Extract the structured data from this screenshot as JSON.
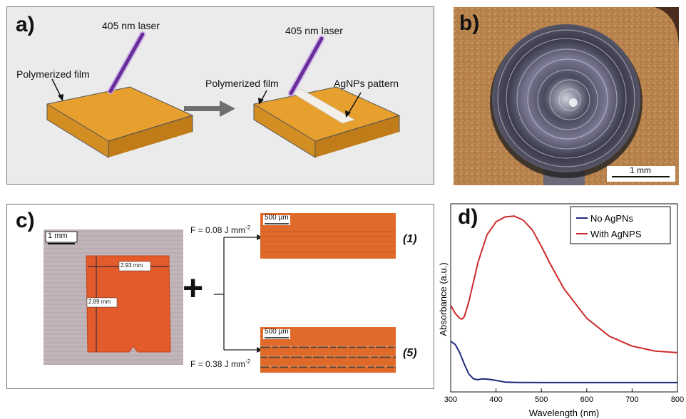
{
  "panel_a": {
    "label": "a)",
    "left_laser_label": "405 nm laser",
    "right_laser_label": "405 nm laser",
    "left_film_label": "Polymerized film",
    "right_film_label": "Polymerized film",
    "pattern_label": "AgNPs pattern",
    "colors": {
      "film_top": "#e7a02e",
      "film_side": "#c9851c",
      "laser": "#6a2e9c",
      "arrow": "#6e6e6e"
    }
  },
  "panel_b": {
    "label": "b)",
    "scale_bar_label": "1 mm"
  },
  "panel_c": {
    "label": "c)",
    "photo_scale_label": "1 mm",
    "width_label": "2.93 mm",
    "height_label": "2.89 mm",
    "plus_symbol": "+",
    "fluence_top_prefix": "F = 0.08 J mm",
    "fluence_top_exp": "-2",
    "fluence_bottom_prefix": "F = 0.38 J mm",
    "fluence_bottom_exp": "-2",
    "micro_top_scale": "500 µm",
    "micro_bottom_scale": "500 µm",
    "tag_top": "(1)",
    "tag_bottom": "(5)"
  },
  "panel_d": {
    "label": "d)",
    "chart_data": {
      "type": "line",
      "xlabel": "Wavelength (nm)",
      "ylabel": "Absorbance (a.u.)",
      "xlim": [
        300,
        800
      ],
      "ylim": [
        0,
        1
      ],
      "x_ticks": [
        "300",
        "400",
        "500",
        "600",
        "700",
        "800"
      ],
      "y_ticks_shown": false,
      "grid": false,
      "legend_position": "top-right",
      "series": [
        {
          "name": "No AgPNs",
          "color": "#1f2a7a",
          "x": [
            300,
            310,
            320,
            330,
            340,
            350,
            360,
            370,
            380,
            390,
            400,
            420,
            450,
            500,
            600,
            700,
            800
          ],
          "y": [
            0.26,
            0.24,
            0.19,
            0.12,
            0.06,
            0.03,
            0.025,
            0.03,
            0.028,
            0.025,
            0.02,
            0.01,
            0.008,
            0.007,
            0.007,
            0.007,
            0.007
          ]
        },
        {
          "name": "With AgNPS",
          "color": "#cc2a2a",
          "x": [
            300,
            310,
            320,
            325,
            330,
            340,
            350,
            360,
            380,
            400,
            420,
            440,
            460,
            480,
            500,
            520,
            550,
            600,
            650,
            700,
            750,
            800
          ],
          "y": [
            0.48,
            0.43,
            0.4,
            0.395,
            0.41,
            0.5,
            0.62,
            0.74,
            0.91,
            0.99,
            1.02,
            1.025,
            1.0,
            0.94,
            0.84,
            0.73,
            0.58,
            0.4,
            0.29,
            0.23,
            0.2,
            0.19
          ]
        }
      ]
    }
  }
}
